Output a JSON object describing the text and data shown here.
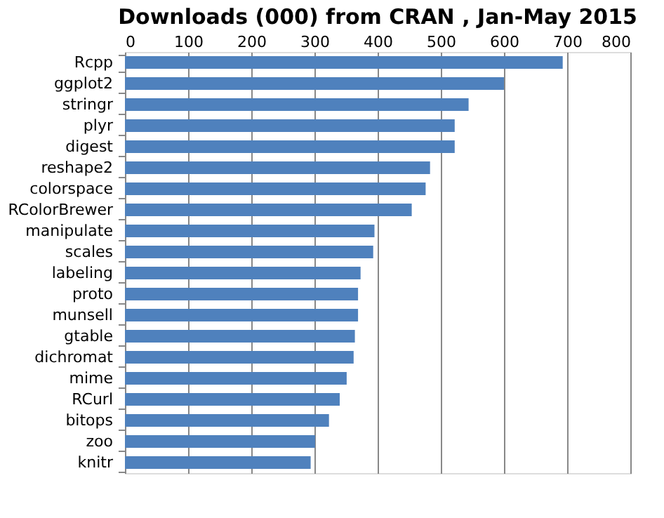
{
  "chart_data": {
    "type": "bar",
    "orientation": "horizontal",
    "title": "Downloads (000) from CRAN , Jan-May 2015",
    "categories": [
      "Rcpp",
      "ggplot2",
      "stringr",
      "plyr",
      "digest",
      "reshape2",
      "colorspace",
      "RColorBrewer",
      "manipulate",
      "scales",
      "labeling",
      "proto",
      "munsell",
      "gtable",
      "dichromat",
      "mime",
      "RCurl",
      "bitops",
      "zoo",
      "knitr"
    ],
    "values": [
      693,
      600,
      544,
      522,
      522,
      483,
      476,
      454,
      395,
      393,
      373,
      369,
      369,
      364,
      362,
      351,
      340,
      323,
      301,
      294
    ],
    "color": "#4f81bd",
    "xlim": [
      0,
      800
    ],
    "xticks": [
      0,
      100,
      200,
      300,
      400,
      500,
      600,
      700,
      800
    ],
    "grid": "x"
  }
}
